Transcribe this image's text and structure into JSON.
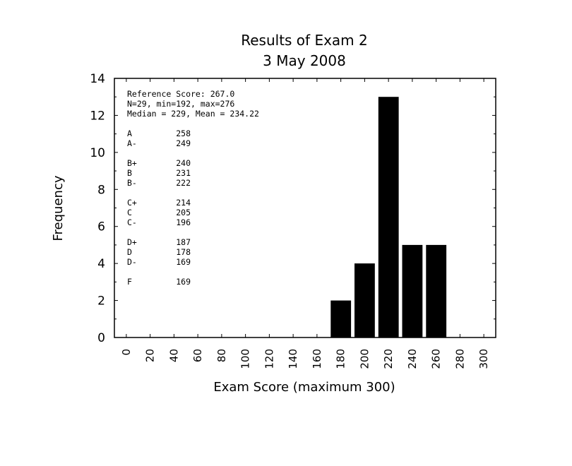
{
  "chart_data": {
    "type": "bar",
    "title": "Results of Exam 2",
    "subtitle": "3 May 2008",
    "xlabel": "Exam Score (maximum 300)",
    "ylabel": "Frequency",
    "xlim": [
      -10,
      310
    ],
    "ylim": [
      0,
      14
    ],
    "x_ticks": [
      0,
      20,
      40,
      60,
      80,
      100,
      120,
      140,
      160,
      180,
      200,
      220,
      240,
      260,
      280,
      300
    ],
    "x_tick_labels": [
      "0",
      "20",
      "40",
      "60",
      "80",
      "100",
      "120",
      "140",
      "160",
      "180",
      "200",
      "220",
      "240",
      "260",
      "280",
      "300"
    ],
    "y_ticks": [
      0,
      2,
      4,
      6,
      8,
      10,
      12,
      14
    ],
    "y_tick_labels": [
      "0",
      "2",
      "4",
      "6",
      "8",
      "10",
      "12",
      "14"
    ],
    "bin_width": 20,
    "bars": [
      {
        "x": 180,
        "value": 2
      },
      {
        "x": 200,
        "value": 4
      },
      {
        "x": 220,
        "value": 13
      },
      {
        "x": 240,
        "value": 5
      },
      {
        "x": 260,
        "value": 5
      }
    ],
    "bar_color": "#000000",
    "grid": false
  },
  "annotations": {
    "stats": [
      "Reference Score: 267.0",
      "N=29, min=192, max=276",
      "Median = 229, Mean = 234.22"
    ],
    "grade_groups": [
      [
        {
          "grade": "A",
          "cutoff": "258"
        },
        {
          "grade": "A-",
          "cutoff": "249"
        }
      ],
      [
        {
          "grade": "B+",
          "cutoff": "240"
        },
        {
          "grade": "B",
          "cutoff": "231"
        },
        {
          "grade": "B-",
          "cutoff": "222"
        }
      ],
      [
        {
          "grade": "C+",
          "cutoff": "214"
        },
        {
          "grade": "C",
          "cutoff": "205"
        },
        {
          "grade": "C-",
          "cutoff": "196"
        }
      ],
      [
        {
          "grade": "D+",
          "cutoff": "187"
        },
        {
          "grade": "D",
          "cutoff": "178"
        },
        {
          "grade": "D-",
          "cutoff": "169"
        }
      ],
      [
        {
          "grade": "F",
          "cutoff": "169"
        }
      ]
    ]
  }
}
